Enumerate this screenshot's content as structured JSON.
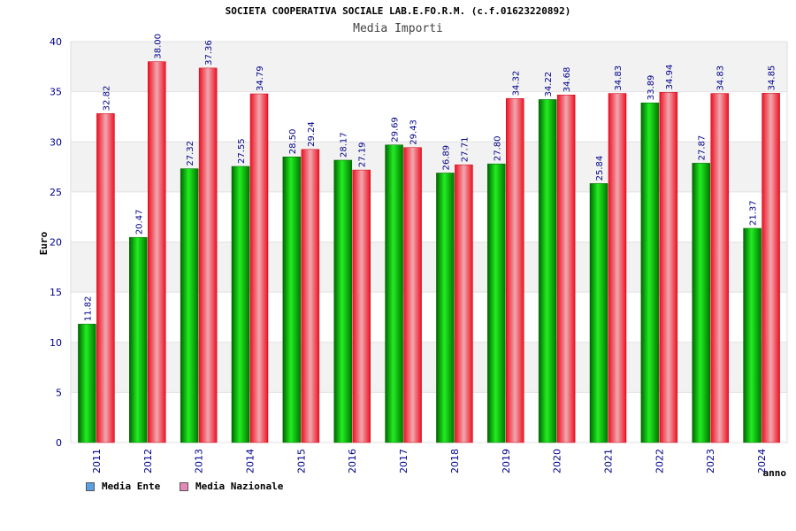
{
  "title": "SOCIETA COOPERATIVA SOCIALE LAB.E.FO.R.M. (c.f.01623220892)",
  "subtitle": "Media Importi",
  "legend": {
    "ente": "Media Ente",
    "nazionale": "Media Nazionale",
    "ente_color": "#5aa0e6",
    "nazionale_color": "#e888b8"
  },
  "colors": {
    "ente_bar": "#00aa00",
    "nazionale_bar": "#ee1122",
    "axis_text": "#00008b"
  },
  "chart_data": {
    "type": "bar",
    "title": "SOCIETA COOPERATIVA SOCIALE LAB.E.FO.R.M. (c.f.01623220892)",
    "subtitle": "Media Importi",
    "xlabel": "anno",
    "ylabel": "Euro",
    "ylim": [
      0,
      40
    ],
    "yticks": [
      0,
      5,
      10,
      15,
      20,
      25,
      30,
      35,
      40
    ],
    "categories": [
      "2011",
      "2012",
      "2013",
      "2014",
      "2015",
      "2016",
      "2017",
      "2018",
      "2019",
      "2020",
      "2021",
      "2022",
      "2023",
      "2024"
    ],
    "series": [
      {
        "name": "Media Ente",
        "values": [
          11.82,
          20.47,
          27.32,
          27.55,
          28.5,
          28.17,
          29.69,
          26.89,
          27.8,
          34.22,
          25.84,
          33.89,
          27.87,
          21.37
        ],
        "labels": [
          "11.82",
          "20.47",
          "27.32",
          "27.55",
          "28.50",
          "28.17",
          "29.69",
          "26.89",
          "27.80",
          "34.22",
          "25.84",
          "33.89",
          "27.87",
          "21.37"
        ]
      },
      {
        "name": "Media Nazionale",
        "values": [
          32.82,
          38.0,
          37.36,
          34.79,
          29.24,
          27.19,
          29.43,
          27.71,
          34.32,
          34.68,
          34.83,
          34.94,
          34.83,
          34.85
        ],
        "labels": [
          "32.82",
          "38.00",
          "37.36",
          "34.79",
          "29.24",
          "27.19",
          "29.43",
          "27.71",
          "34.32",
          "34.68",
          "34.83",
          "34.94",
          "34.83",
          "34.85"
        ]
      }
    ]
  }
}
